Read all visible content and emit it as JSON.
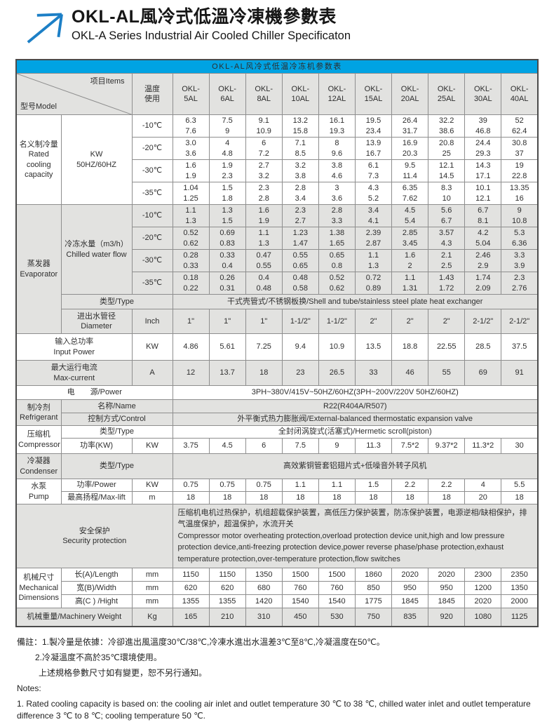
{
  "header": {
    "title_zh": "OKL-AL風冷式低溫冷凍機參數表",
    "title_en": "OKL-A Series Industrial Air Cooled Chiller Specificaton",
    "logo_icon": "arrow-up-right-icon"
  },
  "colors": {
    "accent_blue": "#00a3e3",
    "logo_blue": "#1c7fc6",
    "section_gray": "#e2e2e0",
    "border_dark": "#4b4b4b",
    "border_gray": "#8e8e8e"
  },
  "table": {
    "caption": "OKL-AL风冷式低温冷冻机参数表",
    "corner": {
      "model": "型号Model",
      "items": "项目Items"
    },
    "temp_header": "温度\n使用",
    "models": [
      "OKL-\n5AL",
      "OKL-\n6AL",
      "OKL-\n8AL",
      "OKL-\n10AL",
      "OKL-\n12AL",
      "OKL-\n15AL",
      "OKL-\n20AL",
      "OKL-\n25AL",
      "OKL-\n30AL",
      "OKL-\n40AL"
    ],
    "cooling": {
      "label": "名义制冷量\nRated\ncooling\ncapacity",
      "unit": "KW\n50HZ/60HZ",
      "rows": [
        {
          "temp": "-10℃",
          "values": [
            "6.3\n7.6",
            "7.5\n9",
            "9.1\n10.9",
            "13.2\n15.8",
            "16.1\n19.3",
            "19.5\n23.4",
            "26.4\n31.7",
            "32.2\n38.6",
            "39\n46.8",
            "52\n62.4"
          ]
        },
        {
          "temp": "-20℃",
          "values": [
            "3.0\n3.6",
            "4\n4.8",
            "6\n7.2",
            "7.1\n8.5",
            "8\n9.6",
            "13.9\n16.7",
            "16.9\n20.3",
            "20.8\n25",
            "24.4\n29.3",
            "30.8\n37"
          ]
        },
        {
          "temp": "-30℃",
          "values": [
            "1.6\n1.9",
            "1.9\n2.3",
            "2.7\n3.2",
            "3.2\n3.8",
            "3.8\n4.6",
            "6.1\n7.3",
            "9.5\n11.4",
            "12.1\n14.5",
            "14.3\n17.1",
            "19\n22.8"
          ]
        },
        {
          "temp": "-35℃",
          "values": [
            "1.04\n1.25",
            "1.5\n1.8",
            "2.3\n2.8",
            "2.8\n3.4",
            "3\n3.6",
            "4.3\n5.2",
            "6.35\n7.62",
            "8.3\n10",
            "10.1\n12.1",
            "13.35\n16"
          ]
        }
      ]
    },
    "evaporator": {
      "label": "蒸发器\nEvaporator",
      "flow_label": "冷冻水量（m3/h）\nChilled water flow",
      "rows": [
        {
          "temp": "-10℃",
          "values": [
            "1.1\n1.3",
            "1.3\n1.5",
            "1.6\n1.9",
            "2.3\n2.7",
            "2.8\n3.3",
            "3.4\n4.1",
            "4.5\n5.4",
            "5.6\n6.7",
            "6.7\n8.1",
            "9\n10.8"
          ]
        },
        {
          "temp": "-20℃",
          "values": [
            "0.52\n0.62",
            "0.69\n0.83",
            "1.1\n1.3",
            "1.23\n1.47",
            "1.38\n1.65",
            "2.39\n2.87",
            "2.85\n3.45",
            "3.57\n4.3",
            "4.2\n5.04",
            "5.3\n6.36"
          ]
        },
        {
          "temp": "-30℃",
          "values": [
            "0.28\n0.33",
            "0.33\n0.4",
            "0.47\n0.55",
            "0.55\n0.65",
            "0.65\n0.8",
            "1.1\n1.3",
            "1.6\n2",
            "2.1\n2.5",
            "2.46\n2.9",
            "3.3\n3.9"
          ]
        },
        {
          "temp": "-35℃",
          "values": [
            "0.18\n0.22",
            "0.26\n0.31",
            "0.4\n0.48",
            "0.48\n0.58",
            "0.52\n0.62",
            "0.72\n0.89",
            "1.1\n1.31",
            "1.43\n1.72",
            "1.74\n2.09",
            "2.3\n2.76"
          ]
        }
      ],
      "type_label": "类型/Type",
      "type_value": "干式壳管式/不锈钢板换/Shell and tube/stainless steel plate heat exchanger",
      "diameter_label": "进出水管径\nDiameter",
      "diameter_unit": "Inch",
      "diameter_values": [
        "1\"",
        "1\"",
        "1\"",
        "1-1/2\"",
        "1-1/2\"",
        "2\"",
        "2\"",
        "2\"",
        "2-1/2\"",
        "2-1/2\""
      ]
    },
    "input_power": {
      "label": "输入总功率\nInput Power",
      "unit": "KW",
      "values": [
        "4.86",
        "5.61",
        "7.25",
        "9.4",
        "10.9",
        "13.5",
        "18.8",
        "22.55",
        "28.5",
        "37.5"
      ]
    },
    "max_current": {
      "label": "最大运行电流\nMax-current",
      "unit": "A",
      "values": [
        "12",
        "13.7",
        "18",
        "23",
        "26.5",
        "33",
        "46",
        "55",
        "69",
        "91"
      ]
    },
    "power_supply": {
      "label": "电　　源/Power",
      "value": "3PH~380V/415V~50HZ/60HZ(3PH~200V/220V 50HZ/60HZ)"
    },
    "refrigerant": {
      "label": "制冷剂\nRefrigerant",
      "name_label": "名称/Name",
      "name_value": "R22(R404A/R507)",
      "control_label": "控制方式/Control",
      "control_value": "外平衡式热力膨胀阀/External-balanced thermostatic expansion valve"
    },
    "compressor": {
      "label": "压缩机\nCompressor",
      "type_label": "类型/Type",
      "type_value": "全封闭涡旋式(活塞式)/Hermetic scroll(piston)",
      "power_label": "功率(KW)",
      "power_unit": "KW",
      "power_values": [
        "3.75",
        "4.5",
        "6",
        "7.5",
        "9",
        "11.3",
        "7.5*2",
        "9.37*2",
        "11.3*2",
        "30"
      ]
    },
    "condenser": {
      "label": "冷凝器\nCondenser",
      "type_label": "类型/Type",
      "type_value": "高效紫铜管套铝翅片式+低噪音外转子风机"
    },
    "pump": {
      "label": "水泵\nPump",
      "power_label": "功率/Power",
      "power_unit": "KW",
      "power_values": [
        "0.75",
        "0.75",
        "0.75",
        "1.1",
        "1.1",
        "1.5",
        "2.2",
        "2.2",
        "4",
        "5.5"
      ],
      "lift_label": "最高扬程/Max-lift",
      "lift_unit": "m",
      "lift_values": [
        "18",
        "18",
        "18",
        "18",
        "18",
        "18",
        "18",
        "18",
        "20",
        "18"
      ]
    },
    "security": {
      "label": "安全保护\nSecurity protection",
      "value": "压缩机电机过热保护，机组超载保护装置，高低压力保护装置，防冻保护装置，电源逆相/缺相保护，排气温度保护，超温保护，水流开关\nCompressor motor overheating protection,overload protection device unit,high and low pressure protection device,anti-freezing protection device,power reverse phase/phase protection,exhaust temperature protection,over-temperature protection,flow switches"
    },
    "dimensions": {
      "label": "机械尺寸\nMechanical\nDimensions",
      "unit": "mm",
      "length_label": "长(A)/Length",
      "length_values": [
        "1150",
        "1150",
        "1350",
        "1500",
        "1500",
        "1860",
        "2020",
        "2020",
        "2300",
        "2350"
      ],
      "width_label": "宽(B)/Width",
      "width_values": [
        "620",
        "620",
        "680",
        "760",
        "760",
        "850",
        "950",
        "950",
        "1200",
        "1350"
      ],
      "height_label": "高(C ) /Hight",
      "height_values": [
        "1355",
        "1355",
        "1420",
        "1540",
        "1540",
        "1775",
        "1845",
        "1845",
        "2020",
        "2000"
      ]
    },
    "weight": {
      "label": "机械重量/Machinery Weight",
      "unit": "Kg",
      "values": [
        "165",
        "210",
        "310",
        "450",
        "530",
        "750",
        "835",
        "920",
        "1080",
        "1125"
      ]
    }
  },
  "notes": {
    "line1": "備註：1.製冷量是依據：冷卻進出風溫度30℃/38℃,冷凍水進出水溫差3℃至8℃,冷凝溫度在50℃。",
    "line2": "2.冷凝溫度不高於35℃環境使用。",
    "line3": "上述規格參數尺寸如有變更，恕不另行通知。",
    "line4": "Notes:",
    "line5": "1. Rated cooling capacity is based on: the cooling air inlet and outlet temperature 30 ℃ to 38 ℃, chilled water inlet and outlet temperature difference 3 ℃ to 8 ℃; cooling temperature 50 ℃."
  }
}
